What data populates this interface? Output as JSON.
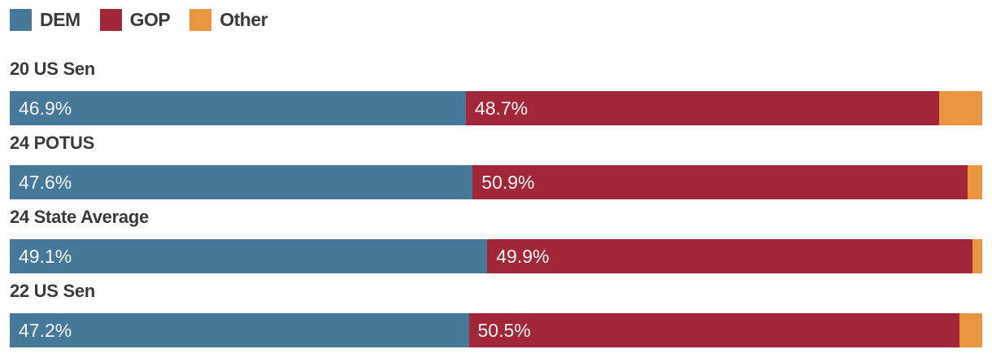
{
  "page": {
    "background": "#ffffff",
    "title_text_color": "#3b3b3b",
    "bar_label_color": "#f5f5f5"
  },
  "chart_data": {
    "type": "bar",
    "orientation": "horizontal",
    "stacked": true,
    "unit": "%",
    "xlim": [
      0,
      100
    ],
    "legend_position": "top",
    "value_labels": "inside-left",
    "categories": [
      "20 US Sen",
      "24 POTUS",
      "24 State Average",
      "22 US Sen"
    ],
    "series": [
      {
        "name": "DEM",
        "color": "#46789a",
        "values": [
          46.9,
          47.6,
          49.1,
          47.2
        ],
        "labels": [
          "46.9%",
          "47.6%",
          "49.1%",
          "47.2%"
        ]
      },
      {
        "name": "GOP",
        "color": "#a02638",
        "values": [
          48.7,
          50.9,
          49.9,
          50.5
        ],
        "labels": [
          "48.7%",
          "50.9%",
          "49.9%",
          "50.5%"
        ]
      },
      {
        "name": "Other",
        "color": "#e9963f",
        "values": [
          4.4,
          1.5,
          1.0,
          2.3
        ],
        "labels": [
          "",
          "",
          "",
          ""
        ]
      }
    ]
  }
}
